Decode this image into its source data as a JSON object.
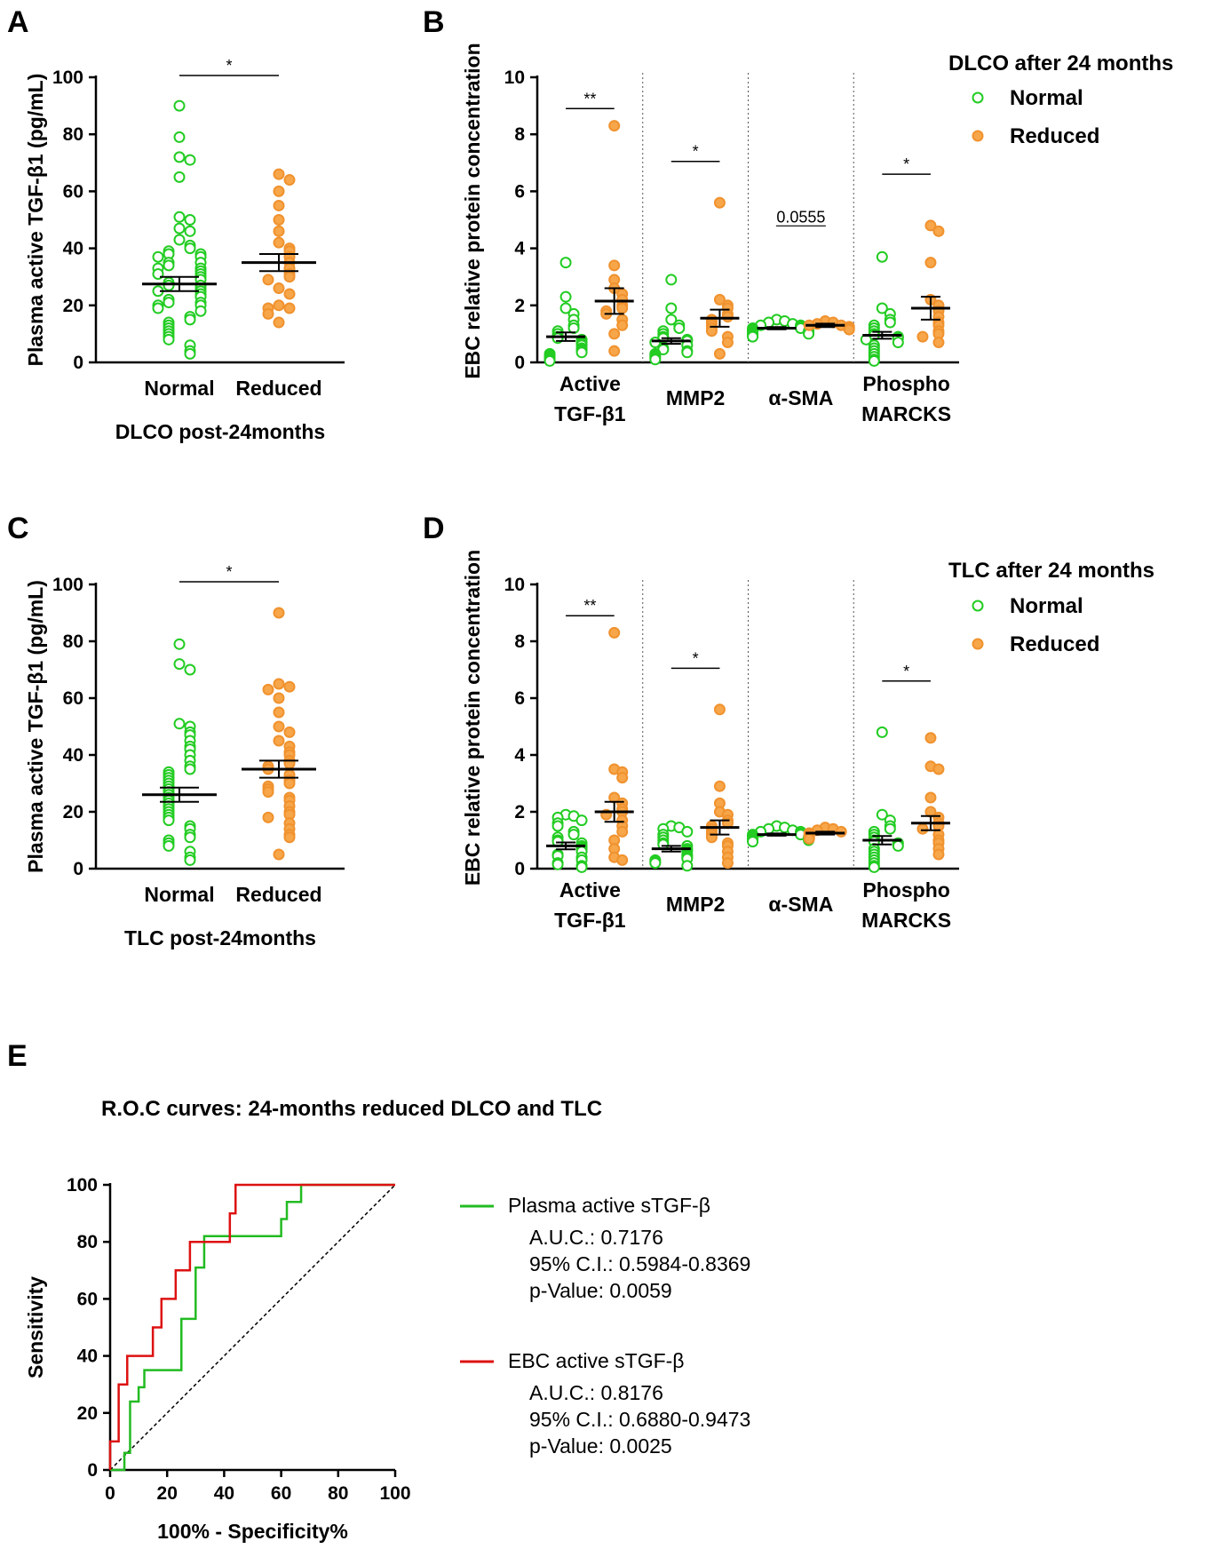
{
  "colors": {
    "normal_fill": "#ffffff",
    "normal_stroke": "#22cc22",
    "reduced_fill": "#f7a64a",
    "reduced_stroke": "#f0922e",
    "roc_green": "#22bb22",
    "roc_red": "#dd1111"
  },
  "chart_data": [
    {
      "id": "A",
      "letter": "A",
      "type": "scatter",
      "ylabel": "Plasma active TGF-β1 (pg/mL)",
      "xlabel": "DLCO post-24months",
      "ylim": [
        0,
        100
      ],
      "yticks": [
        "0",
        "20",
        "40",
        "60",
        "80",
        "100"
      ],
      "categories": [
        "Normal",
        "Reduced"
      ],
      "means": [
        27.5,
        35
      ],
      "sem": [
        2.5,
        3
      ],
      "significance": "*",
      "points": [
        [
          90,
          79,
          72,
          71,
          65,
          51,
          50,
          47,
          46,
          43,
          41,
          40,
          39,
          38,
          38,
          37,
          37,
          35,
          35,
          34,
          33,
          33,
          32,
          31,
          31,
          30,
          29,
          28,
          27,
          27,
          26,
          25,
          25,
          24,
          23,
          22,
          21,
          21,
          20,
          20,
          19,
          18,
          16,
          15,
          14,
          13,
          12,
          11,
          10,
          9,
          8,
          6,
          4,
          3
        ],
        [
          66,
          64,
          60,
          55,
          50,
          46,
          42,
          40,
          39,
          37,
          35,
          33,
          31,
          30,
          29,
          26,
          24,
          20,
          19,
          19,
          17,
          14
        ]
      ]
    },
    {
      "id": "B",
      "letter": "B",
      "type": "scatter",
      "ylabel": "EBC relative protein concentration",
      "ylim": [
        0,
        10
      ],
      "yticks": [
        "0",
        "2",
        "4",
        "6",
        "8",
        "10"
      ],
      "groups": [
        "Active\nTGF-β1",
        "MMP2",
        "α-SMA",
        "Phospho\nMARCKS"
      ],
      "legend_title": "DLCO after 24 months",
      "legend": [
        "Normal",
        "Reduced"
      ],
      "means": [
        [
          0.9,
          2.15
        ],
        [
          0.75,
          1.55
        ],
        [
          1.2,
          1.3
        ],
        [
          0.95,
          1.9
        ]
      ],
      "sem": [
        [
          0.15,
          0.45
        ],
        [
          0.1,
          0.3
        ],
        [
          0.04,
          0.06
        ],
        [
          0.12,
          0.4
        ]
      ],
      "significance": [
        "**",
        "*",
        "0.0555",
        "*"
      ],
      "points": [
        [
          [
            3.5,
            2.3,
            1.9,
            1.7,
            1.5,
            1.3,
            1.2,
            1.1,
            1.0,
            0.9,
            0.85,
            0.8,
            0.7,
            0.65,
            0.6,
            0.5,
            0.45,
            0.4,
            0.35,
            0.3,
            0.25,
            0.2,
            0.15,
            0.1,
            0.05
          ],
          [
            8.3,
            3.4,
            2.9,
            2.6,
            2.4,
            2.2,
            2.0,
            1.9,
            1.8,
            1.7,
            1.5,
            1.3,
            1.0,
            0.4
          ]
        ],
        [
          [
            2.9,
            1.9,
            1.5,
            1.3,
            1.2,
            1.1,
            1.0,
            0.9,
            0.85,
            0.8,
            0.75,
            0.7,
            0.6,
            0.5,
            0.45,
            0.4,
            0.35,
            0.3,
            0.25,
            0.2,
            0.15,
            0.1
          ],
          [
            5.6,
            2.2,
            2.0,
            1.9,
            1.7,
            1.6,
            1.5,
            1.4,
            1.3,
            1.2,
            1.1,
            0.9,
            0.7,
            0.3
          ]
        ],
        [
          [
            1.5,
            1.45,
            1.4,
            1.35,
            1.3,
            1.3,
            1.25,
            1.2,
            1.2,
            1.15,
            1.1,
            1.1,
            1.05,
            1.0,
            1.0,
            0.95,
            0.9
          ],
          [
            1.45,
            1.4,
            1.35,
            1.3,
            1.3,
            1.25,
            1.2,
            1.15
          ]
        ],
        [
          [
            3.7,
            1.9,
            1.7,
            1.5,
            1.4,
            1.3,
            1.2,
            1.1,
            1.0,
            0.95,
            0.9,
            0.85,
            0.8,
            0.7,
            0.6,
            0.5,
            0.4,
            0.3,
            0.2,
            0.1,
            0.05
          ],
          [
            4.8,
            4.6,
            3.5,
            2.2,
            2.0,
            1.8,
            1.6,
            1.4,
            1.3,
            1.1,
            1.0,
            0.9,
            0.7
          ]
        ]
      ]
    },
    {
      "id": "C",
      "letter": "C",
      "type": "scatter",
      "ylabel": "Plasma active TGF-β1 (pg/mL)",
      "xlabel": "TLC post-24months",
      "ylim": [
        0,
        100
      ],
      "yticks": [
        "0",
        "20",
        "40",
        "60",
        "80",
        "100"
      ],
      "categories": [
        "Normal",
        "Reduced"
      ],
      "means": [
        26,
        35
      ],
      "sem": [
        2.5,
        3
      ],
      "significance": "*",
      "points": [
        [
          79,
          72,
          70,
          51,
          50,
          48,
          47,
          45,
          43,
          42,
          40,
          38,
          36,
          35,
          34,
          33,
          32,
          31,
          30,
          29,
          28,
          27,
          26,
          25,
          24,
          23,
          22,
          21,
          20,
          19,
          18,
          17,
          15,
          14,
          12,
          11,
          10,
          9,
          8,
          6,
          4,
          3
        ],
        [
          90,
          65,
          64,
          63,
          60,
          55,
          50,
          48,
          45,
          43,
          41,
          40,
          38,
          37,
          36,
          35,
          33,
          31,
          30,
          29,
          28,
          27,
          25,
          24,
          22,
          20,
          19,
          18,
          16,
          14,
          12,
          11,
          5
        ]
      ]
    },
    {
      "id": "D",
      "letter": "D",
      "type": "scatter",
      "ylabel": "EBC relative protein concentration",
      "ylim": [
        0,
        10
      ],
      "yticks": [
        "0",
        "2",
        "4",
        "6",
        "8",
        "10"
      ],
      "groups": [
        "Active\nTGF-β1",
        "MMP2",
        "α-SMA",
        "Phospho\nMARCKS"
      ],
      "legend_title": "TLC after 24 months",
      "legend": [
        "Normal",
        "Reduced"
      ],
      "means": [
        [
          0.8,
          2.0
        ],
        [
          0.7,
          1.45
        ],
        [
          1.2,
          1.25
        ],
        [
          1.0,
          1.6
        ]
      ],
      "sem": [
        [
          0.12,
          0.35
        ],
        [
          0.1,
          0.25
        ],
        [
          0.04,
          0.05
        ],
        [
          0.15,
          0.25
        ]
      ],
      "significance": [
        "**",
        "*",
        "",
        "*"
      ],
      "points": [
        [
          [
            1.9,
            1.85,
            1.8,
            1.7,
            1.6,
            1.5,
            1.3,
            1.2,
            1.1,
            1.0,
            0.95,
            0.9,
            0.8,
            0.75,
            0.7,
            0.6,
            0.5,
            0.45,
            0.4,
            0.3,
            0.2,
            0.15,
            0.1,
            0.05
          ],
          [
            8.3,
            3.5,
            3.4,
            3.2,
            2.5,
            2.3,
            2.1,
            2.0,
            1.9,
            1.7,
            1.5,
            1.3,
            1.0,
            0.7,
            0.4,
            0.3
          ]
        ],
        [
          [
            1.5,
            1.45,
            1.4,
            1.3,
            1.2,
            1.1,
            1.0,
            0.9,
            0.85,
            0.8,
            0.7,
            0.65,
            0.6,
            0.5,
            0.45,
            0.4,
            0.35,
            0.3,
            0.25,
            0.2,
            0.1
          ],
          [
            5.6,
            2.9,
            2.3,
            2.0,
            1.9,
            1.7,
            1.6,
            1.5,
            1.4,
            1.3,
            1.2,
            1.1,
            0.9,
            0.8,
            0.6,
            0.4,
            0.2
          ]
        ],
        [
          [
            1.5,
            1.45,
            1.4,
            1.35,
            1.3,
            1.3,
            1.25,
            1.2,
            1.2,
            1.15,
            1.1,
            1.1,
            1.05,
            1.0,
            1.0,
            0.95
          ],
          [
            1.45,
            1.4,
            1.35,
            1.3,
            1.25,
            1.2,
            1.15,
            1.1,
            1.05
          ]
        ],
        [
          [
            4.8,
            1.9,
            1.7,
            1.5,
            1.4,
            1.3,
            1.2,
            1.1,
            1.0,
            0.95,
            0.9,
            0.8,
            0.7,
            0.6,
            0.5,
            0.4,
            0.3,
            0.2,
            0.1,
            0.05
          ],
          [
            4.6,
            3.6,
            3.5,
            2.5,
            2.0,
            1.8,
            1.6,
            1.5,
            1.4,
            1.2,
            1.0,
            0.9,
            0.7,
            0.5
          ]
        ]
      ]
    },
    {
      "id": "E",
      "letter": "E",
      "type": "line",
      "title": "R.O.C curves: 24-months reduced DLCO and TLC",
      "xlabel": "100% - Specificity%",
      "ylabel": "Sensitivity",
      "xlim": [
        0,
        100
      ],
      "ylim": [
        0,
        100
      ],
      "xticks": [
        "0",
        "20",
        "40",
        "60",
        "80",
        "100"
      ],
      "yticks": [
        "0",
        "20",
        "40",
        "60",
        "80",
        "100"
      ],
      "series": [
        {
          "name": "Plasma active sTGF-β",
          "auc": "A.U.C.: 0.7176",
          "ci": "95% C.I.: 0.5984-0.8369",
          "p": "p-Value: 0.0059",
          "x": [
            0,
            5,
            5,
            7,
            7,
            10,
            10,
            12,
            12,
            15,
            15,
            25,
            25,
            30,
            30,
            33,
            33,
            35,
            35,
            45,
            45,
            60,
            60,
            62,
            62,
            67,
            67,
            100
          ],
          "y": [
            0,
            0,
            6,
            6,
            24,
            24,
            29,
            29,
            35,
            35,
            35,
            35,
            53,
            53,
            71,
            71,
            82,
            82,
            82,
            82,
            82,
            82,
            88,
            88,
            94,
            94,
            100,
            100
          ]
        },
        {
          "name": "EBC active sTGF-β",
          "auc": "A.U.C.: 0.8176",
          "ci": "95% C.I.: 0.6880-0.9473",
          "p": "p-Value: 0.0025",
          "x": [
            0,
            0,
            3,
            3,
            6,
            6,
            15,
            15,
            18,
            18,
            23,
            23,
            28,
            28,
            40,
            40,
            42,
            42,
            44,
            44,
            100
          ],
          "y": [
            0,
            10,
            10,
            30,
            30,
            40,
            40,
            50,
            50,
            60,
            60,
            70,
            70,
            80,
            80,
            80,
            80,
            90,
            90,
            100,
            100
          ]
        }
      ]
    }
  ]
}
